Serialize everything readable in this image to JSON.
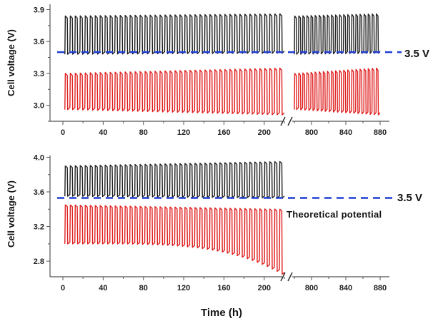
{
  "chart_data": [
    {
      "type": "line",
      "panel": "top",
      "ylabel": "Cell voltage (V)",
      "xlabel": "",
      "ylim": [
        2.85,
        3.95
      ],
      "yticks": [
        3.0,
        3.3,
        3.6,
        3.9
      ],
      "ytick_labels": [
        "3.0",
        "3.3",
        "3.6",
        "3.9"
      ],
      "x_segments": [
        [
          0,
          220
        ],
        [
          775,
          880
        ]
      ],
      "xticks": [
        0,
        40,
        80,
        120,
        160,
        200,
        800,
        840,
        880
      ],
      "xtick_labels": [
        "0",
        "40",
        "80",
        "120",
        "160",
        "200",
        "800",
        "840",
        "880"
      ],
      "series": [
        {
          "color": "#222222",
          "cycles_per_segment": [
            44,
            21
          ],
          "high": [
            3.84,
            3.86
          ],
          "low": [
            3.48,
            3.49
          ]
        },
        {
          "color": "#e02020",
          "cycles_per_segment": [
            44,
            21
          ],
          "high": [
            3.3,
            3.35
          ],
          "low": [
            2.96,
            2.91
          ]
        }
      ],
      "reference_line": {
        "y": 3.5,
        "label": "3.5 V",
        "color": "#1f3fd6"
      },
      "annotation": ""
    },
    {
      "type": "line",
      "panel": "bottom",
      "ylabel": "Cell voltage (V)",
      "xlabel": "Time (h)",
      "ylim": [
        2.62,
        4.02
      ],
      "yticks": [
        2.8,
        3.2,
        3.6,
        4.0
      ],
      "ytick_labels": [
        "2.8",
        "3.2",
        "3.6",
        "4.0"
      ],
      "x_segments": [
        [
          0,
          220
        ],
        [
          775,
          880
        ]
      ],
      "xticks": [
        0,
        40,
        80,
        120,
        160,
        200,
        800,
        840,
        880
      ],
      "xtick_labels": [
        "0",
        "40",
        "80",
        "120",
        "160",
        "200",
        "800",
        "840",
        "880"
      ],
      "series": [
        {
          "color": "#222222",
          "cycles_per_segment": [
            44,
            0
          ],
          "high": [
            3.9,
            3.95
          ],
          "low": [
            3.55,
            3.53
          ]
        },
        {
          "color": "#e02020",
          "cycles_per_segment": [
            44,
            0
          ],
          "high": [
            3.45,
            3.4
          ],
          "low": [
            3.0,
            2.65
          ]
        }
      ],
      "reference_line": {
        "y": 3.53,
        "label": "3.5 V",
        "color": "#1f3fd6"
      },
      "annotation": "Theoretical potential"
    }
  ],
  "colors": {
    "charge": "#222222",
    "discharge": "#e02020",
    "reference": "#1f3fd6",
    "axis": "#555555"
  }
}
